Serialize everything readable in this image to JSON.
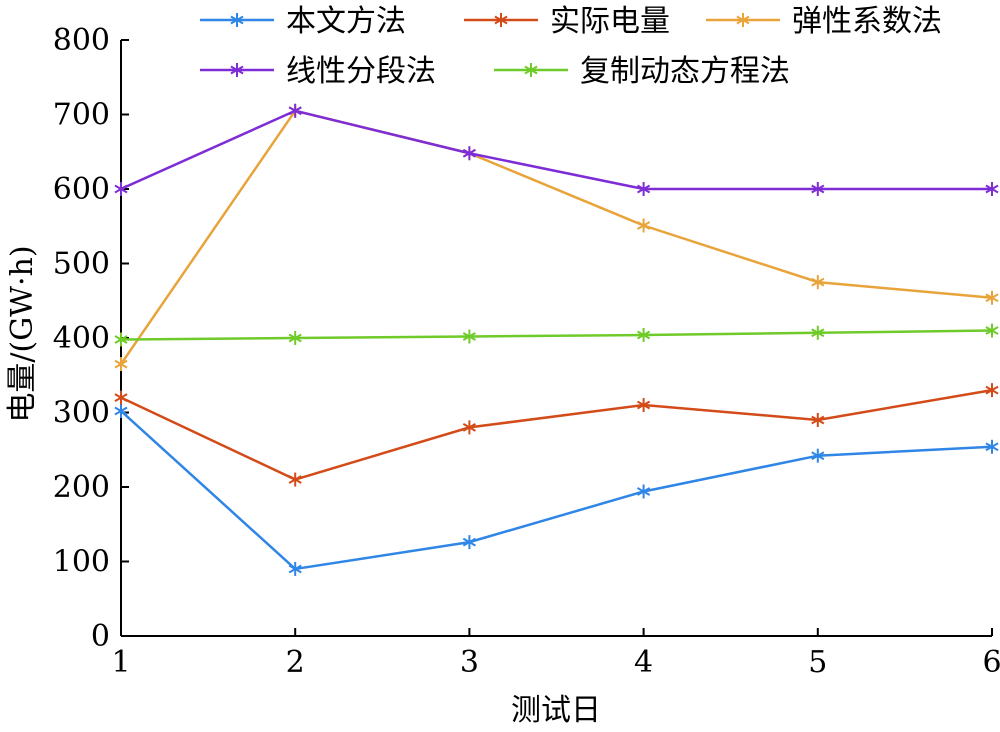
{
  "chart_data": {
    "type": "line",
    "xlabel": "测试日",
    "ylabel": "电量/(GW·h)",
    "x": [
      1,
      2,
      3,
      4,
      5,
      6
    ],
    "xlim": [
      1,
      6
    ],
    "ylim": [
      0,
      800
    ],
    "yticks": [
      0,
      100,
      200,
      300,
      400,
      500,
      600,
      700,
      800
    ],
    "xticks": [
      1,
      2,
      3,
      4,
      5,
      6
    ],
    "grid": false,
    "legend_position": "top",
    "marker": "asterisk",
    "series": [
      {
        "name": "本文方法",
        "color": "#2F86E6",
        "values": [
          302,
          90,
          126,
          194,
          242,
          254
        ]
      },
      {
        "name": "实际电量",
        "color": "#D34B18",
        "values": [
          320,
          210,
          280,
          310,
          290,
          330
        ]
      },
      {
        "name": "弹性系数法",
        "color": "#E8A43A",
        "values": [
          365,
          705,
          648,
          551,
          475,
          454
        ]
      },
      {
        "name": "线性分段法",
        "color": "#7E2CD6",
        "values": [
          600,
          705,
          648,
          600,
          600,
          600
        ]
      },
      {
        "name": "复制动态方程法",
        "color": "#6FCB29",
        "values": [
          398,
          400,
          402,
          404,
          407,
          410
        ]
      }
    ]
  }
}
